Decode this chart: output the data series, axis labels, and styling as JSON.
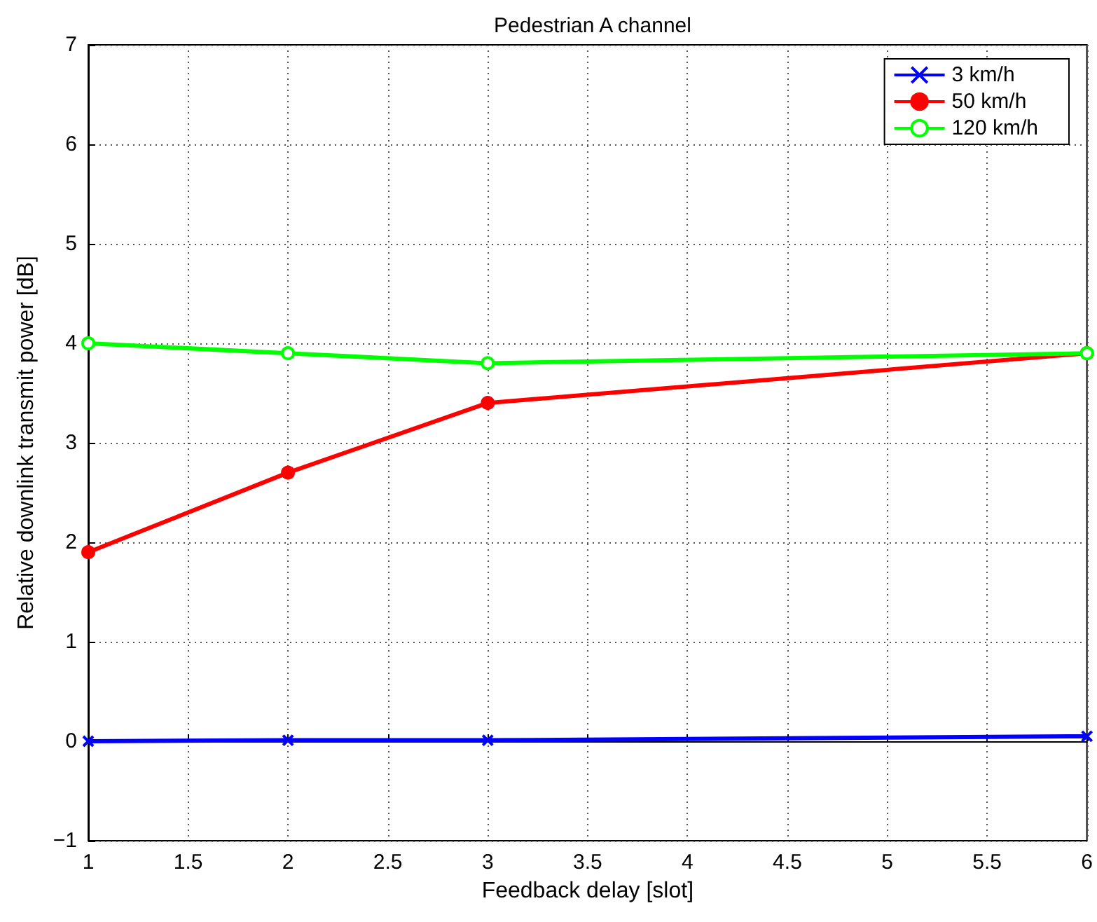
{
  "chart_data": {
    "type": "line",
    "title": "Pedestrian A channel",
    "xlabel": "Feedback delay [slot]",
    "ylabel": "Relative downlink transmit power [dB]",
    "x": [
      1,
      2,
      3,
      6
    ],
    "series": [
      {
        "name": "3 km/h",
        "color": "#0000ff",
        "marker": "cross",
        "values": [
          0,
          0.01,
          0.01,
          0.05
        ]
      },
      {
        "name": "50 km/h",
        "color": "#ff0000",
        "marker": "circle",
        "values": [
          1.9,
          2.7,
          3.4,
          3.9
        ]
      },
      {
        "name": "120 km/h",
        "color": "#00ff00",
        "marker": "open-circle",
        "values": [
          4.0,
          3.9,
          3.8,
          3.9
        ]
      }
    ],
    "xlim": [
      1,
      6
    ],
    "xticks": [
      1,
      1.5,
      2,
      2.5,
      3,
      3.5,
      4,
      4.5,
      5,
      5.5,
      6
    ],
    "ylim": [
      -1,
      7
    ],
    "yticks": [
      {
        "value": -1,
        "label": "−1"
      },
      0,
      1,
      2,
      3,
      4,
      5,
      6,
      7
    ],
    "grid": true,
    "legend": "top right",
    "line_style": "solid"
  }
}
